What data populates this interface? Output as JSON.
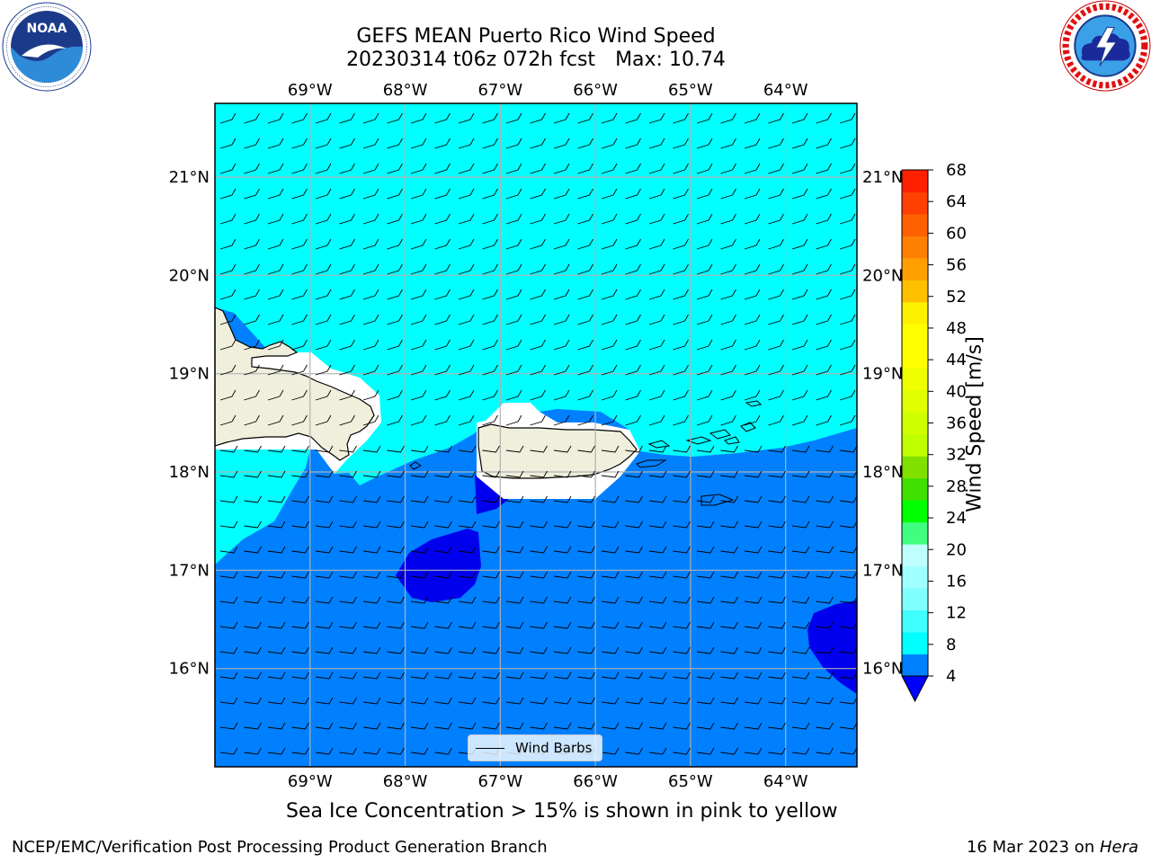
{
  "title": {
    "line1": "GEFS MEAN Puerto Rico Wind Speed",
    "line2a": "20230314 t06z 072h fcst",
    "line2b": "Max: 10.74"
  },
  "subtitle": "Sea Ice Concentration > 15% is shown in pink to yellow",
  "footer": {
    "left": "NCEP/EMC/Verification Post Processing Product Generation Branch",
    "right_date": "16 Mar 2023 on ",
    "right_host": "Hera"
  },
  "legend": {
    "label": "Wind Barbs"
  },
  "axes": {
    "lon_labels": [
      "69°W",
      "68°W",
      "67°W",
      "66°W",
      "65°W",
      "64°W"
    ],
    "lon_values": [
      -69,
      -68,
      -67,
      -66,
      -65,
      -64
    ],
    "lat_labels": [
      "21°N",
      "20°N",
      "19°N",
      "18°N",
      "17°N",
      "16°N"
    ],
    "lat_values": [
      21,
      20,
      19,
      18,
      17,
      16
    ],
    "lon_range": [
      -70,
      -63.25
    ],
    "lat_range": [
      15,
      21.75
    ]
  },
  "colorbar": {
    "title": "Wind Speed [m/s]",
    "ticks": [
      "68",
      "64",
      "60",
      "56",
      "52",
      "48",
      "44",
      "40",
      "36",
      "32",
      "28",
      "24",
      "20",
      "16",
      "12",
      "8",
      "4"
    ],
    "levels": [
      4,
      8,
      10,
      12,
      14,
      16,
      18,
      20,
      24,
      28,
      32,
      34,
      36,
      38,
      40,
      42,
      44,
      46,
      48,
      52,
      56,
      60,
      64,
      68
    ],
    "colors": [
      "#0080ff",
      "#00ffff",
      "#40ffff",
      "#80ffff",
      "#a0ffff",
      "#c0ffff",
      "#40ff80",
      "#00ff00",
      "#40e000",
      "#80e000",
      "#c0ff00",
      "#d0ff00",
      "#e0ff00",
      "#f0ff00",
      "#ffff00",
      "#ffff00",
      "#fff000",
      "#ffc000",
      "#ffa000",
      "#ff8000",
      "#ff6000",
      "#ff4000",
      "#ff2000",
      "#ff0000"
    ],
    "under_color": "#0000ff"
  },
  "field_colors": {
    "speed_4_8": "#0080ff",
    "speed_8_12": "#00ffff",
    "speed_below_4": "#0000ee",
    "land": "#efefdc"
  },
  "icons": {
    "left_logo": "noaa-logo",
    "right_logo": "nws-logo"
  }
}
